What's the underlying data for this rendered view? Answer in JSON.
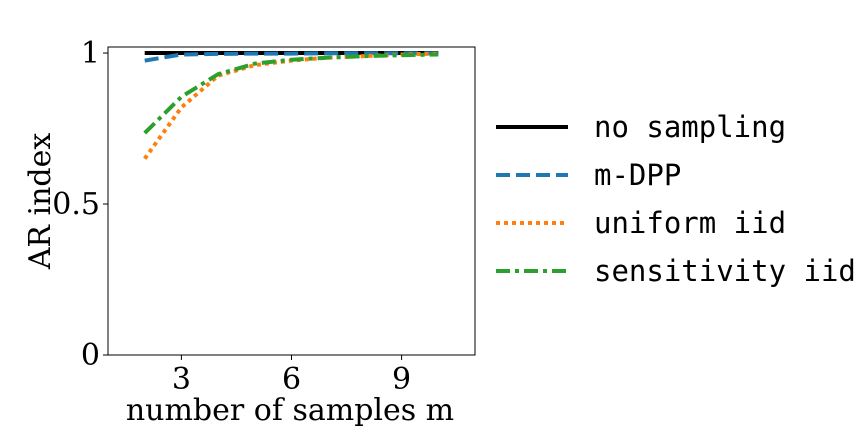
{
  "chart_data": {
    "type": "line",
    "xlabel": "number of samples m",
    "ylabel": "AR index",
    "xlim": [
      1,
      11
    ],
    "ylim": [
      0,
      1.02
    ],
    "xticks": [
      3,
      6,
      9
    ],
    "yticks": [
      0,
      0.5,
      1
    ],
    "ytick_labels": [
      "0",
      "0.5",
      "1"
    ],
    "xtick_labels": [
      "3",
      "6",
      "9"
    ],
    "grid": false,
    "legend_position": "outside-right",
    "x": [
      2,
      3,
      4,
      5,
      6,
      7,
      8,
      9,
      10
    ],
    "series": [
      {
        "name": "no sampling",
        "color": "#000000",
        "style": "solid",
        "values": [
          1.0,
          1.0,
          1.0,
          1.0,
          1.0,
          1.0,
          1.0,
          1.0,
          1.0
        ]
      },
      {
        "name": "m-DPP",
        "color": "#1f77b4",
        "style": "dashed",
        "values": [
          0.975,
          0.995,
          0.997,
          0.998,
          0.998,
          0.999,
          0.999,
          0.999,
          0.999
        ]
      },
      {
        "name": "uniform iid",
        "color": "#ff7f0e",
        "style": "dotted",
        "values": [
          0.65,
          0.82,
          0.925,
          0.96,
          0.975,
          0.985,
          0.99,
          0.995,
          0.998
        ]
      },
      {
        "name": "sensitivity iid",
        "color": "#2ca02c",
        "style": "dashdot",
        "values": [
          0.735,
          0.855,
          0.93,
          0.965,
          0.978,
          0.985,
          0.99,
          0.993,
          0.995
        ]
      }
    ]
  }
}
